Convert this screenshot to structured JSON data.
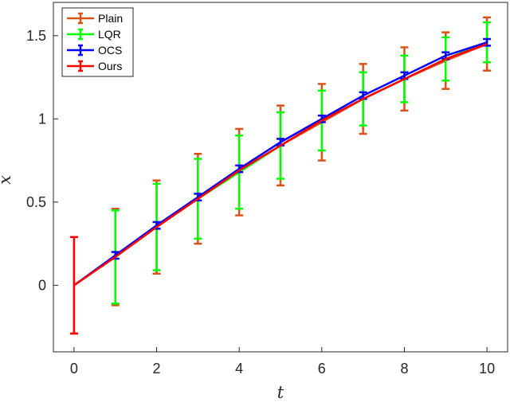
{
  "chart_data": {
    "type": "line",
    "xlabel": "t",
    "ylabel": "x",
    "xlim": [
      -0.5,
      10.5
    ],
    "ylim": [
      -0.4,
      1.7
    ],
    "xticks": [
      0,
      2,
      4,
      6,
      8,
      10
    ],
    "xtick_labels": [
      "0",
      "2",
      "4",
      "6",
      "8",
      "10"
    ],
    "yticks": [
      0,
      0.5,
      1,
      1.5
    ],
    "ytick_labels": [
      "0",
      "0.5",
      "1",
      "1.5"
    ],
    "grid": false,
    "legend_position": "top-left",
    "x": [
      0,
      1,
      2,
      3,
      4,
      5,
      6,
      7,
      8,
      9,
      10
    ],
    "series": [
      {
        "name": "Plain",
        "color": "#D95319",
        "values": [
          0.0,
          0.17,
          0.35,
          0.52,
          0.68,
          0.84,
          0.98,
          1.12,
          1.24,
          1.35,
          1.45
        ],
        "error": [
          0.29,
          0.29,
          0.28,
          0.27,
          0.26,
          0.24,
          0.23,
          0.21,
          0.19,
          0.17,
          0.16
        ]
      },
      {
        "name": "LQR",
        "color": "#00FF00",
        "values": [
          0.0,
          0.17,
          0.35,
          0.52,
          0.68,
          0.84,
          0.99,
          1.12,
          1.24,
          1.36,
          1.46
        ],
        "error": [
          0.0,
          0.28,
          0.26,
          0.24,
          0.22,
          0.2,
          0.18,
          0.16,
          0.14,
          0.13,
          0.12
        ]
      },
      {
        "name": "OCS",
        "color": "#0000FF",
        "values": [
          0.0,
          0.18,
          0.36,
          0.53,
          0.7,
          0.86,
          1.0,
          1.14,
          1.26,
          1.38,
          1.46
        ],
        "error": [
          0.0,
          0.02,
          0.02,
          0.02,
          0.02,
          0.02,
          0.02,
          0.02,
          0.02,
          0.02,
          0.02
        ]
      },
      {
        "name": "Ours",
        "color": "#FF0000",
        "values": [
          0.0,
          0.17,
          0.35,
          0.52,
          0.69,
          0.84,
          0.99,
          1.12,
          1.24,
          1.36,
          1.45
        ],
        "error": [
          0.29,
          0.0,
          0.0,
          0.0,
          0.0,
          0.0,
          0.0,
          0.0,
          0.0,
          0.0,
          0.0
        ]
      }
    ]
  }
}
